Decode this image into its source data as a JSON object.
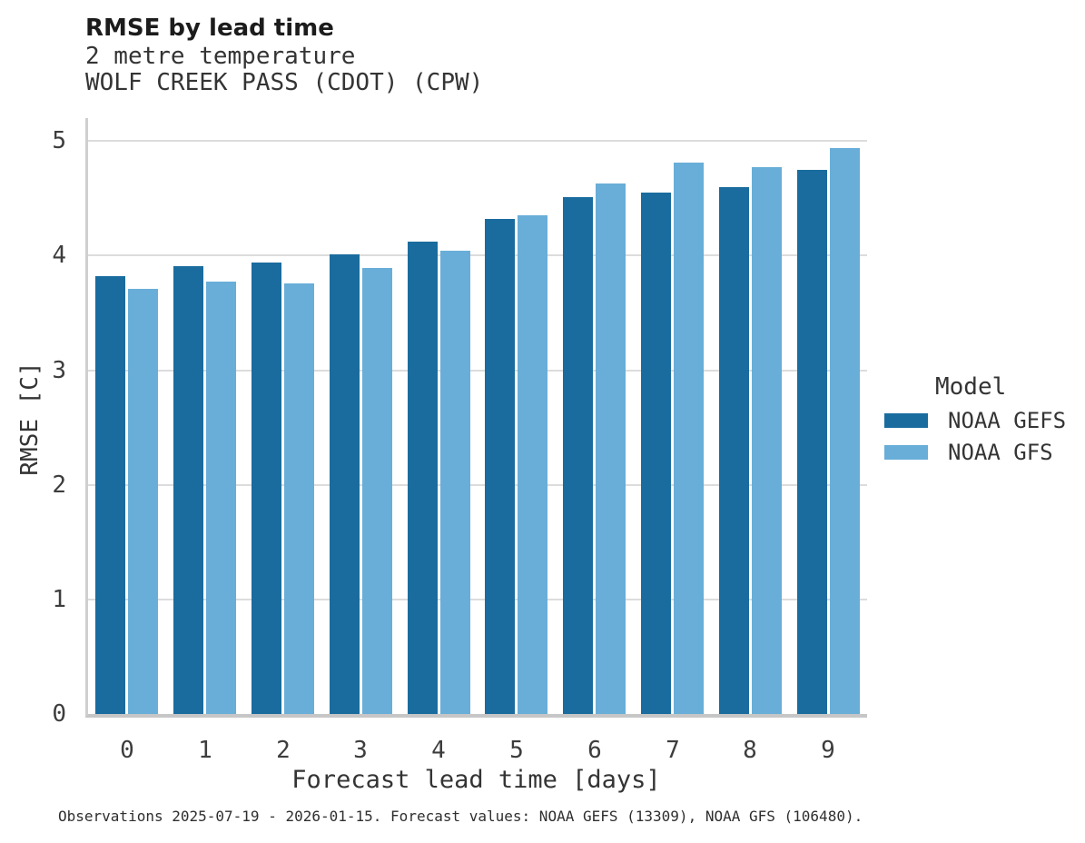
{
  "header": {
    "title": "RMSE by lead time",
    "subtitle_variable": "2 metre temperature",
    "subtitle_station": "WOLF CREEK PASS (CDOT) (CPW)"
  },
  "chart_data": {
    "type": "bar",
    "title": "RMSE by lead time",
    "subtitle": [
      "2 metre temperature",
      "WOLF CREEK PASS (CDOT) (CPW)"
    ],
    "xlabel": "Forecast lead time [days]",
    "ylabel": "RMSE [C]",
    "categories": [
      "0",
      "1",
      "2",
      "3",
      "4",
      "5",
      "6",
      "7",
      "8",
      "9"
    ],
    "series": [
      {
        "name": "NOAA GEFS",
        "color": "#1a6c9e",
        "values": [
          3.82,
          3.91,
          3.94,
          4.01,
          4.12,
          4.32,
          4.51,
          4.55,
          4.6,
          4.75
        ]
      },
      {
        "name": "NOAA GFS",
        "color": "#68aed8",
        "values": [
          3.71,
          3.77,
          3.76,
          3.89,
          4.04,
          4.35,
          4.63,
          4.81,
          4.77,
          4.94
        ]
      }
    ],
    "ylim": [
      0,
      5.2
    ],
    "yticks": [
      0,
      1,
      2,
      3,
      4,
      5
    ],
    "grid": true,
    "legend_position": "right"
  },
  "legend": {
    "title": "Model",
    "entries": [
      {
        "label": "NOAA GEFS",
        "color": "#1a6c9e"
      },
      {
        "label": "NOAA GFS",
        "color": "#68aed8"
      }
    ]
  },
  "footer": {
    "text": "Observations 2025-07-19 - 2026-01-15. Forecast values: NOAA GEFS (13309), NOAA GFS (106480)."
  },
  "colors": {
    "gridline": "#dcdcdc",
    "axis_spine": "#cfcfcf",
    "text": "#343434",
    "background": "#ffffff"
  }
}
